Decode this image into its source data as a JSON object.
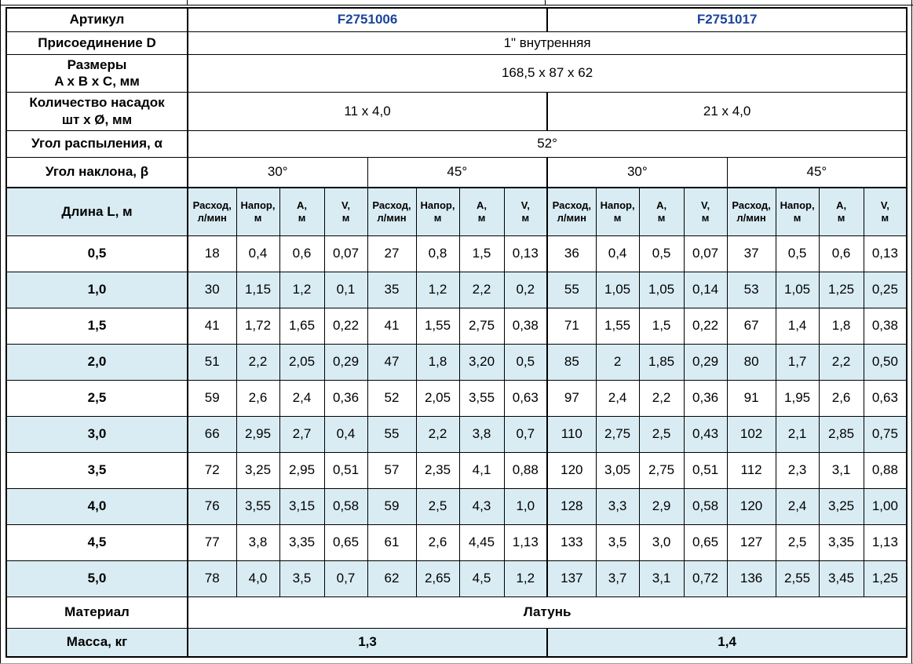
{
  "colors": {
    "alt_row_bg": "#d9ecf3",
    "header_bg": "#d9ecf3",
    "article_text": "#1b449c",
    "border": "#000000",
    "text": "#000000"
  },
  "chart_data": {
    "type": "table",
    "spec": {
      "article": {
        "label": "Артикул",
        "left": "F2751006",
        "right": "F2751017"
      },
      "connection": {
        "label": "Присоединение D",
        "value": "1\" внутренняя"
      },
      "dimensions": {
        "label_line1": "Размеры",
        "label_line2": "A x B x C, мм",
        "value": "168,5 x 87 x 62"
      },
      "nozzles": {
        "label_line1": "Количество насадок",
        "label_line2": "шт x Ø, мм",
        "left": "11 x 4,0",
        "right": "21 x 4,0"
      },
      "spray_angle": {
        "label": "Угол распыления, α",
        "value": "52°"
      },
      "tilt_angle": {
        "label": "Угол наклона, β",
        "values": [
          "30°",
          "45°",
          "30°",
          "45°"
        ]
      }
    },
    "measurements": {
      "row_header": "Длина L, м",
      "column_headers": [
        {
          "line1": "Расход,",
          "line2": "л/мин"
        },
        {
          "line1": "Напор,",
          "line2": "м"
        },
        {
          "line1": "A,",
          "line2": "м"
        },
        {
          "line1": "V,",
          "line2": "м"
        }
      ],
      "rows": [
        {
          "length": "0,5",
          "values": [
            "18",
            "0,4",
            "0,6",
            "0,07",
            "27",
            "0,8",
            "1,5",
            "0,13",
            "36",
            "0,4",
            "0,5",
            "0,07",
            "37",
            "0,5",
            "0,6",
            "0,13"
          ]
        },
        {
          "length": "1,0",
          "values": [
            "30",
            "1,15",
            "1,2",
            "0,1",
            "35",
            "1,2",
            "2,2",
            "0,2",
            "55",
            "1,05",
            "1,05",
            "0,14",
            "53",
            "1,05",
            "1,25",
            "0,25"
          ]
        },
        {
          "length": "1,5",
          "values": [
            "41",
            "1,72",
            "1,65",
            "0,22",
            "41",
            "1,55",
            "2,75",
            "0,38",
            "71",
            "1,55",
            "1,5",
            "0,22",
            "67",
            "1,4",
            "1,8",
            "0,38"
          ]
        },
        {
          "length": "2,0",
          "values": [
            "51",
            "2,2",
            "2,05",
            "0,29",
            "47",
            "1,8",
            "3,20",
            "0,5",
            "85",
            "2",
            "1,85",
            "0,29",
            "80",
            "1,7",
            "2,2",
            "0,50"
          ]
        },
        {
          "length": "2,5",
          "values": [
            "59",
            "2,6",
            "2,4",
            "0,36",
            "52",
            "2,05",
            "3,55",
            "0,63",
            "97",
            "2,4",
            "2,2",
            "0,36",
            "91",
            "1,95",
            "2,6",
            "0,63"
          ]
        },
        {
          "length": "3,0",
          "values": [
            "66",
            "2,95",
            "2,7",
            "0,4",
            "55",
            "2,2",
            "3,8",
            "0,7",
            "110",
            "2,75",
            "2,5",
            "0,43",
            "102",
            "2,1",
            "2,85",
            "0,75"
          ]
        },
        {
          "length": "3,5",
          "values": [
            "72",
            "3,25",
            "2,95",
            "0,51",
            "57",
            "2,35",
            "4,1",
            "0,88",
            "120",
            "3,05",
            "2,75",
            "0,51",
            "112",
            "2,3",
            "3,1",
            "0,88"
          ]
        },
        {
          "length": "4,0",
          "values": [
            "76",
            "3,55",
            "3,15",
            "0,58",
            "59",
            "2,5",
            "4,3",
            "1,0",
            "128",
            "3,3",
            "2,9",
            "0,58",
            "120",
            "2,4",
            "3,25",
            "1,00"
          ]
        },
        {
          "length": "4,5",
          "values": [
            "77",
            "3,8",
            "3,35",
            "0,65",
            "61",
            "2,6",
            "4,45",
            "1,13",
            "133",
            "3,5",
            "3,0",
            "0,65",
            "127",
            "2,5",
            "3,35",
            "1,13"
          ]
        },
        {
          "length": "5,0",
          "values": [
            "78",
            "4,0",
            "3,5",
            "0,7",
            "62",
            "2,65",
            "4,5",
            "1,2",
            "137",
            "3,7",
            "3,1",
            "0,72",
            "136",
            "2,55",
            "3,45",
            "1,25"
          ]
        }
      ]
    },
    "material": {
      "label": "Материал",
      "value": "Латунь"
    },
    "mass": {
      "label": "Масса, кг",
      "left": "1,3",
      "right": "1,4"
    }
  }
}
